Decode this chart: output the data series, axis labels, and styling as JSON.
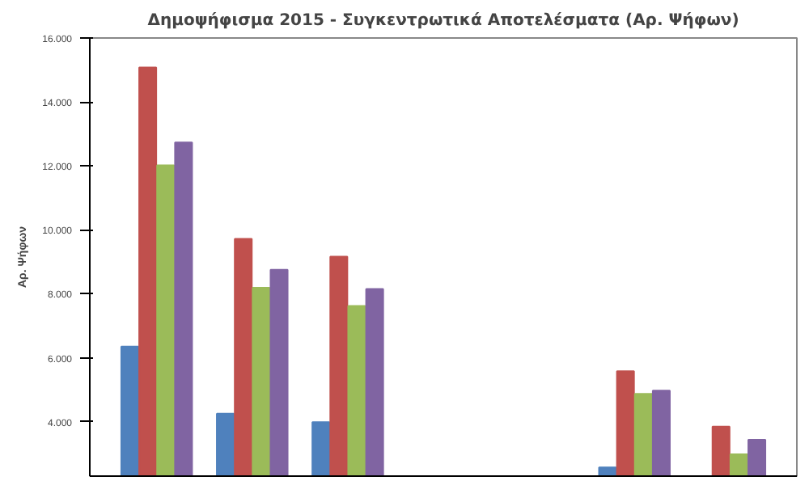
{
  "chart_data": {
    "type": "bar",
    "title": "Δημοψήφισμα 2015 - Συγκεντρωτικά Αποτελέσματα (Αρ. Ψήφων)",
    "ylabel": "Αρ. Ψήφων",
    "categories": [
      null,
      null,
      null,
      null,
      null,
      null,
      null
    ],
    "series": [
      {
        "color": "#4f81bd",
        "values": [
          6350,
          4250,
          3990,
          null,
          null,
          2570,
          null
        ]
      },
      {
        "color": "#c0504d",
        "values": [
          15080,
          9720,
          9160,
          null,
          null,
          5580,
          3850
        ]
      },
      {
        "color": "#9bbb59",
        "values": [
          12020,
          8190,
          7620,
          null,
          null,
          4870,
          2980
        ]
      },
      {
        "color": "#8064a2",
        "values": [
          12730,
          8750,
          8150,
          null,
          null,
          4970,
          3440
        ]
      }
    ],
    "ylim": [
      2300,
      16000
    ],
    "yticks": [
      {
        "value": 4000,
        "label": "4.000"
      },
      {
        "value": 6000,
        "label": "6.000"
      },
      {
        "value": 8000,
        "label": "8.000"
      },
      {
        "value": 10000,
        "label": "10.000"
      },
      {
        "value": 12000,
        "label": "12.000"
      },
      {
        "value": 14000,
        "label": "14.000"
      },
      {
        "value": 16000,
        "label": "16.000"
      }
    ],
    "tick_labels": "y",
    "grid": false
  }
}
